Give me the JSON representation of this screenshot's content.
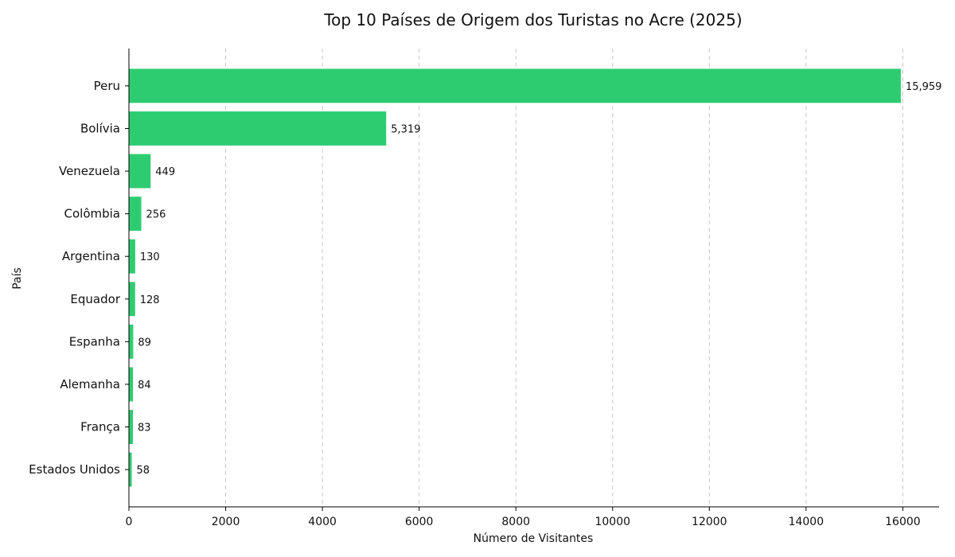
{
  "chart_data": {
    "type": "bar",
    "orientation": "horizontal",
    "title": "Top 10 Países de Origem dos Turistas no Acre (2025)",
    "xlabel": "Número de Visitantes",
    "ylabel": "País",
    "categories": [
      "Peru",
      "Bolívia",
      "Venezuela",
      "Colômbia",
      "Argentina",
      "Equador",
      "Espanha",
      "Alemanha",
      "França",
      "Estados Unidos"
    ],
    "values": [
      15959,
      5319,
      449,
      256,
      130,
      128,
      89,
      84,
      83,
      58
    ],
    "value_labels": [
      "15,959",
      "5,319",
      "449",
      "256",
      "130",
      "128",
      "89",
      "84",
      "83",
      "58"
    ],
    "xlim": [
      0,
      16750
    ],
    "x_ticks": [
      0,
      2000,
      4000,
      6000,
      8000,
      10000,
      12000,
      14000,
      16000
    ],
    "x_tick_labels": [
      "0",
      "2000",
      "4000",
      "6000",
      "8000",
      "10000",
      "12000",
      "14000",
      "16000"
    ],
    "grid": "x-dashed",
    "bar_color": "#2ecc71"
  }
}
